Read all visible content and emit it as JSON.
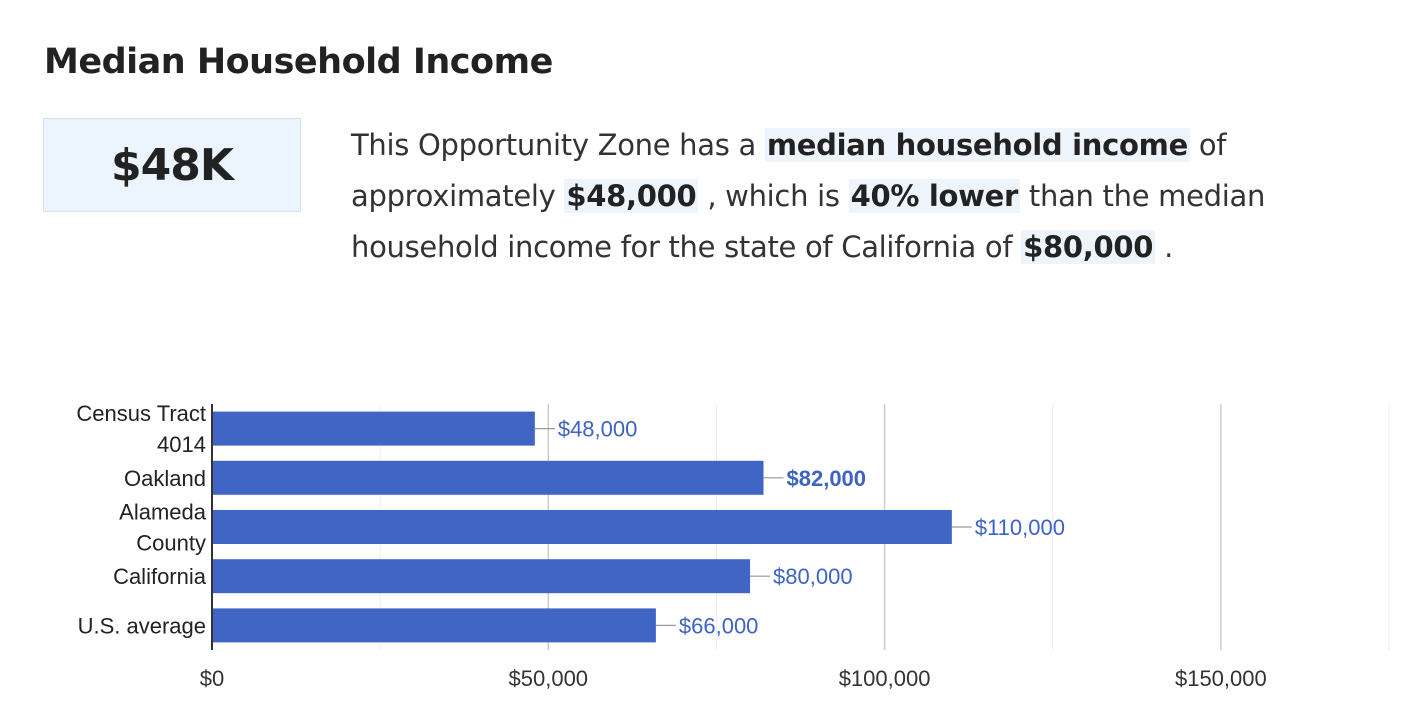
{
  "header": {
    "title": "Median Household Income"
  },
  "stat": {
    "value": "$48K"
  },
  "description": {
    "part1": "This Opportunity Zone has a ",
    "metric": "median household income",
    "part2": " of approximately ",
    "value": "$48,000",
    "part3": " , which is ",
    "comparison": "40% lower",
    "part4": " than the median household income for the state of California of ",
    "state_value": "$80,000",
    "part5": " ."
  },
  "colors": {
    "bar": "#4065c4",
    "value_label": "#3d63c4",
    "highlight": "#edf4fc"
  },
  "chart_data": {
    "type": "bar",
    "orientation": "horizontal",
    "categories": [
      [
        "Census Tract",
        "4014"
      ],
      [
        "Oakland"
      ],
      [
        "Alameda",
        "County"
      ],
      [
        "California"
      ],
      [
        "U.S. average"
      ]
    ],
    "values": [
      48000,
      82000,
      110000,
      80000,
      66000
    ],
    "value_labels": [
      "$48,000",
      "$82,000",
      "$110,000",
      "$80,000",
      "$66,000"
    ],
    "bold_labels": [
      false,
      true,
      false,
      false,
      false
    ],
    "xlim": [
      0,
      175000
    ],
    "xticks": [
      0,
      50000,
      100000,
      150000
    ],
    "xtick_labels": [
      "$0",
      "$50,000",
      "$100,000",
      "$150,000"
    ],
    "minor_gridlines": [
      25000,
      75000,
      125000,
      175000
    ],
    "grid": true,
    "legend": "none"
  }
}
